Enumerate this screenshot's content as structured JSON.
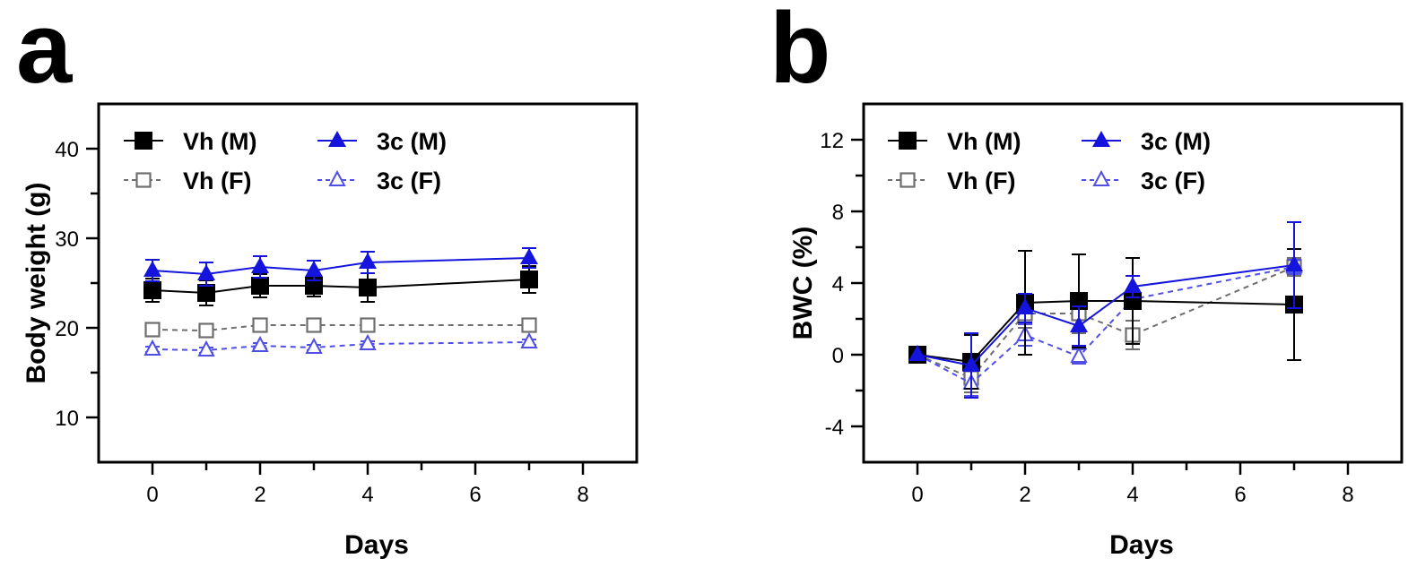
{
  "colors": {
    "black": "#000000",
    "gray": "#6e6e6e",
    "blue": "#1414dc",
    "light_blue": "#4f4fe6"
  },
  "chart_data": [
    {
      "type": "line",
      "panel_label": "a",
      "xlabel": "Days",
      "ylabel": "Body weight (g)",
      "xlim": [
        -1,
        9
      ],
      "ylim": [
        5,
        45
      ],
      "xticks": [
        0,
        2,
        4,
        6,
        8
      ],
      "yticks": [
        10,
        20,
        30,
        40
      ],
      "grid": false,
      "legend_position": "top-left",
      "x": [
        0,
        1,
        2,
        3,
        4,
        7
      ],
      "series": [
        {
          "name": "Vh (M)",
          "color": "#000000",
          "marker": "square-filled",
          "line": "solid",
          "values": [
            24.2,
            23.9,
            24.7,
            24.7,
            24.5,
            25.4
          ],
          "error": [
            1.3,
            1.4,
            1.3,
            1.2,
            1.6,
            1.5
          ]
        },
        {
          "name": "3c (M)",
          "color": "#1414dc",
          "marker": "triangle-filled",
          "line": "solid",
          "values": [
            26.4,
            26.0,
            26.8,
            26.4,
            27.3,
            27.8
          ],
          "error": [
            1.2,
            1.3,
            1.2,
            1.1,
            1.2,
            1.1
          ]
        },
        {
          "name": "Vh (F)",
          "color": "#6e6e6e",
          "marker": "square-open",
          "line": "dashed",
          "values": [
            19.8,
            19.7,
            20.3,
            20.3,
            20.3,
            20.3
          ],
          "error": [
            0.3,
            0.3,
            0.3,
            0.3,
            0.3,
            0.3
          ]
        },
        {
          "name": "3c (F)",
          "color": "#4f4fe6",
          "marker": "triangle-open",
          "line": "dashed",
          "values": [
            17.6,
            17.5,
            18.0,
            17.8,
            18.2,
            18.4
          ],
          "error": [
            0.3,
            0.3,
            0.3,
            0.3,
            0.3,
            0.3
          ]
        }
      ]
    },
    {
      "type": "line",
      "panel_label": "b",
      "xlabel": "Days",
      "ylabel": "BWC (%)",
      "xlim": [
        -1,
        9
      ],
      "ylim": [
        -6,
        14
      ],
      "xticks": [
        0,
        2,
        4,
        6,
        8
      ],
      "yticks": [
        -4,
        0,
        4,
        8,
        12
      ],
      "grid": false,
      "legend_position": "top-left",
      "x": [
        0,
        1,
        2,
        3,
        4,
        7
      ],
      "series": [
        {
          "name": "Vh (M)",
          "color": "#000000",
          "marker": "square-filled",
          "line": "solid",
          "values": [
            0.0,
            -0.4,
            2.9,
            3.0,
            3.0,
            2.8
          ],
          "error": [
            0,
            1.5,
            2.9,
            2.6,
            2.4,
            3.1
          ]
        },
        {
          "name": "3c (M)",
          "color": "#1414dc",
          "marker": "triangle-filled",
          "line": "solid",
          "values": [
            0.0,
            -0.6,
            2.6,
            1.6,
            3.8,
            5.0
          ],
          "error": [
            0,
            1.8,
            0.8,
            1.1,
            0.6,
            2.4
          ]
        },
        {
          "name": "Vh (F)",
          "color": "#6e6e6e",
          "marker": "square-open",
          "line": "dashed",
          "values": [
            0.0,
            -1.3,
            2.3,
            2.3,
            1.1,
            4.9
          ],
          "error": [
            0,
            0.8,
            0.8,
            1.1,
            0.8,
            0.5
          ]
        },
        {
          "name": "3c (F)",
          "color": "#4f4fe6",
          "marker": "triangle-open",
          "line": "dashed",
          "values": [
            0.0,
            -1.6,
            1.1,
            -0.1,
            3.1,
            4.9
          ],
          "error": [
            0,
            0.7,
            0.6,
            0.4,
            0.5,
            0.4
          ]
        }
      ]
    }
  ]
}
